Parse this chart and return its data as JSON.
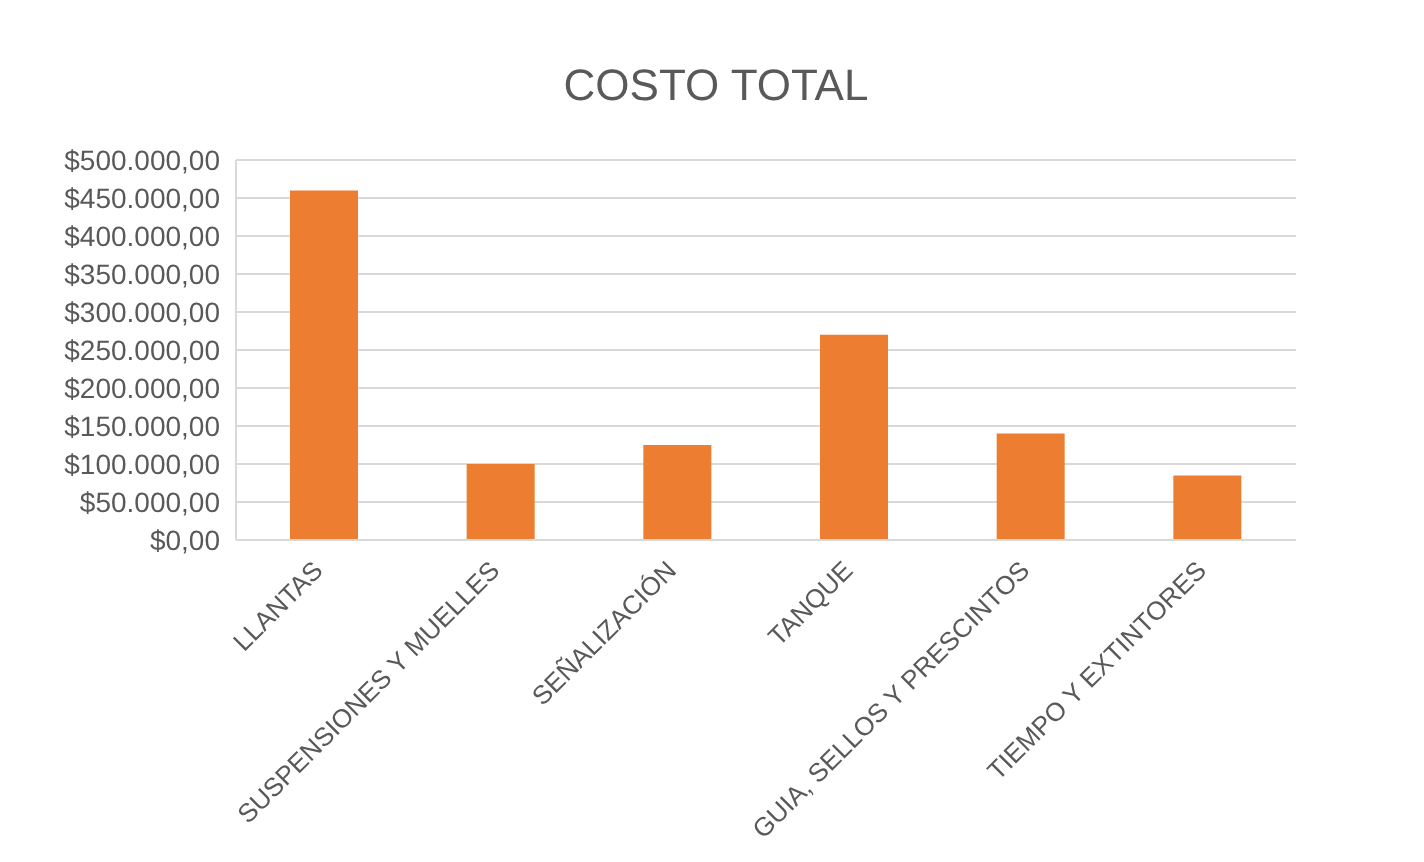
{
  "chart_data": {
    "type": "bar",
    "title": "COSTO TOTAL",
    "categories": [
      "LLANTAS",
      "SUSPENSIONES Y MUELLES",
      "SEÑALIZACIÓN",
      "TANQUE",
      "GUIA, SELLOS Y PRESCINTOS",
      "TIEMPO Y EXTINTORES"
    ],
    "values": [
      460000,
      100000,
      125000,
      270000,
      140000,
      85000
    ],
    "color": "#ed7d31",
    "ylim": [
      0,
      500000
    ],
    "yticks": [
      {
        "value": 0,
        "label": "$0,00"
      },
      {
        "value": 50000,
        "label": "$50.000,00"
      },
      {
        "value": 100000,
        "label": "$100.000,00"
      },
      {
        "value": 150000,
        "label": "$150.000,00"
      },
      {
        "value": 200000,
        "label": "$200.000,00"
      },
      {
        "value": 250000,
        "label": "$250.000,00"
      },
      {
        "value": 300000,
        "label": "$300.000,00"
      },
      {
        "value": 350000,
        "label": "$350.000,00"
      },
      {
        "value": 400000,
        "label": "$400.000,00"
      },
      {
        "value": 450000,
        "label": "$450.000,00"
      },
      {
        "value": 500000,
        "label": "$500.000,00"
      }
    ],
    "grid": "y"
  }
}
